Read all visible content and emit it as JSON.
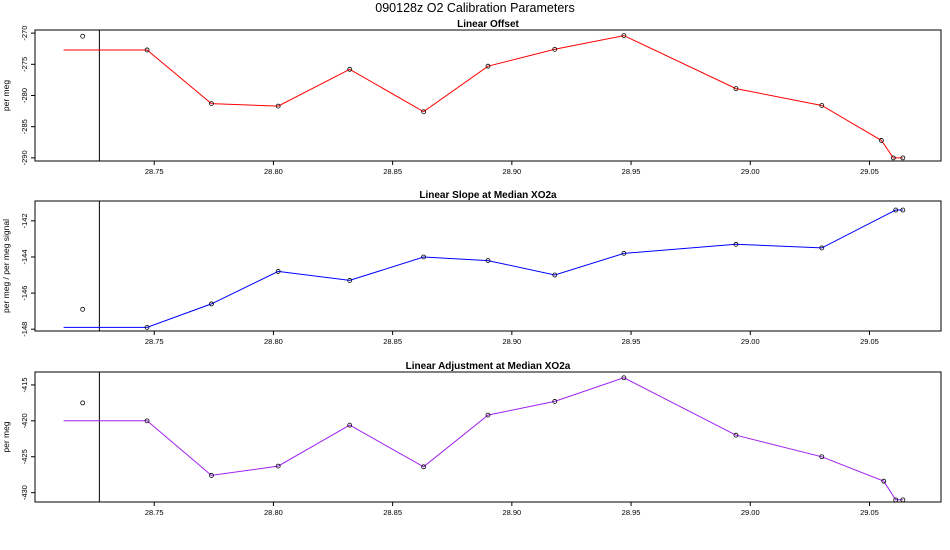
{
  "figure": {
    "title": "090128z   O2 Calibration Parameters"
  },
  "chart_data": [
    {
      "type": "line",
      "title": "Linear Offset",
      "xlabel": "",
      "ylabel": "per meg",
      "xlim": [
        28.7,
        29.08
      ],
      "ylim": [
        -290.5,
        -269.5
      ],
      "xticks": [
        "28.75",
        "28.80",
        "28.85",
        "28.90",
        "28.95",
        "29.00",
        "29.05"
      ],
      "yticks": [
        "-270",
        "-275",
        "-280",
        "-285",
        "-290"
      ],
      "color": "#ff0000",
      "vline_x": 28.727,
      "outlier": {
        "x": 28.72,
        "y": -270.5
      },
      "series": [
        {
          "x": [
            28.712,
            28.747,
            28.774,
            28.802,
            28.832,
            28.863,
            28.89,
            28.918,
            28.947,
            28.994,
            29.03,
            29.055,
            29.06,
            29.064
          ],
          "y": [
            -272.7,
            -272.7,
            -281.3,
            -281.7,
            -275.8,
            -282.6,
            -275.3,
            -272.6,
            -270.4,
            -278.9,
            -281.6,
            -287.2,
            -290,
            -290
          ]
        }
      ]
    },
    {
      "type": "line",
      "title": "Linear Slope at Median XO2a",
      "xlabel": "",
      "ylabel": "per meg / per meg signal",
      "xlim": [
        28.7,
        29.08
      ],
      "ylim": [
        -148.1,
        -140.9
      ],
      "xticks": [
        "28.75",
        "28.80",
        "28.85",
        "28.90",
        "28.95",
        "29.00",
        "29.05"
      ],
      "yticks": [
        "-142",
        "-144",
        "-146",
        "-148"
      ],
      "color": "#0000ff",
      "vline_x": 28.727,
      "outlier": {
        "x": 28.72,
        "y": -146.9
      },
      "series": [
        {
          "x": [
            28.712,
            28.747,
            28.774,
            28.802,
            28.832,
            28.863,
            28.89,
            28.918,
            28.947,
            28.994,
            29.03,
            29.061,
            29.064
          ],
          "y": [
            -147.9,
            -147.9,
            -146.6,
            -144.8,
            -145.3,
            -144.0,
            -144.2,
            -145.0,
            -143.8,
            -143.3,
            -143.5,
            -141.4,
            -141.4
          ]
        }
      ]
    },
    {
      "type": "line",
      "title": "Linear Adjustment at Median XO2a",
      "xlabel": "",
      "ylabel": "per meg",
      "xlim": [
        28.7,
        29.08
      ],
      "ylim": [
        -431.3,
        -413.2
      ],
      "xticks": [
        "28.75",
        "28.80",
        "28.85",
        "28.90",
        "28.95",
        "29.00",
        "29.05"
      ],
      "yticks": [
        "-415",
        "-420",
        "-425",
        "-430"
      ],
      "color": "#a020f0",
      "vline_x": 28.727,
      "outlier": {
        "x": 28.72,
        "y": -417.5
      },
      "series": [
        {
          "x": [
            28.712,
            28.747,
            28.774,
            28.802,
            28.832,
            28.863,
            28.89,
            28.918,
            28.947,
            28.994,
            29.03,
            29.056,
            29.061,
            29.064
          ],
          "y": [
            -420.0,
            -420.0,
            -427.6,
            -426.3,
            -420.6,
            -426.4,
            -419.2,
            -417.3,
            -414.0,
            -422.0,
            -425.0,
            -428.4,
            -431.0,
            -431.0
          ]
        }
      ]
    }
  ]
}
